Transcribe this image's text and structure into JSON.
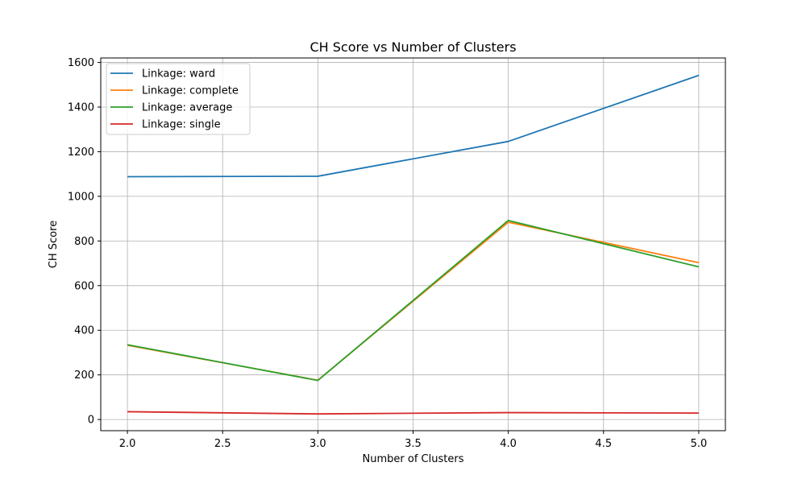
{
  "chart_data": {
    "type": "line",
    "title": "CH Score vs Number of Clusters",
    "xlabel": "Number of Clusters",
    "ylabel": "CH Score",
    "x": [
      2,
      3,
      4,
      5
    ],
    "xlim": [
      1.86,
      5.14
    ],
    "ylim": [
      -50,
      1620
    ],
    "xticks": [
      2.0,
      2.5,
      3.0,
      3.5,
      4.0,
      4.5,
      5.0
    ],
    "xtick_labels": [
      "2.0",
      "2.5",
      "3.0",
      "3.5",
      "4.0",
      "4.5",
      "5.0"
    ],
    "yticks": [
      0,
      200,
      400,
      600,
      800,
      1000,
      1200,
      1400,
      1600
    ],
    "ytick_labels": [
      "0",
      "200",
      "400",
      "600",
      "800",
      "1000",
      "1200",
      "1400",
      "1600"
    ],
    "grid": true,
    "legend_position": "top-left",
    "series": [
      {
        "name": "Linkage: ward",
        "color": "#1f77b4",
        "values": [
          1088,
          1090,
          1246,
          1542
        ]
      },
      {
        "name": "Linkage: complete",
        "color": "#ff7f0e",
        "values": [
          333,
          176,
          884,
          703
        ]
      },
      {
        "name": "Linkage: average",
        "color": "#2ca02c",
        "values": [
          335,
          175,
          892,
          684
        ]
      },
      {
        "name": "Linkage: single",
        "color": "#d62728",
        "values": [
          35,
          25,
          31,
          29
        ]
      }
    ]
  }
}
